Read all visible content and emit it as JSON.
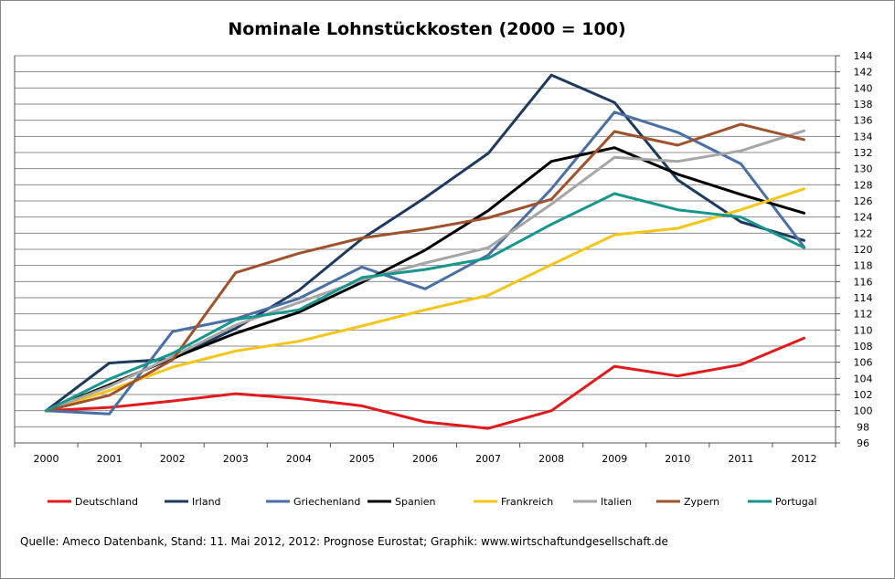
{
  "chart_data": {
    "type": "line",
    "title": "Nominale Lohnstückkosten (2000 = 100)",
    "xlabel": "",
    "ylabel": "",
    "categories": [
      "2000",
      "2001",
      "2002",
      "2003",
      "2004",
      "2005",
      "2006",
      "2007",
      "2008",
      "2009",
      "2010",
      "2011",
      "2012"
    ],
    "ylim": [
      96,
      144
    ],
    "y_ticks": [
      96,
      98,
      100,
      102,
      104,
      106,
      108,
      110,
      112,
      114,
      116,
      118,
      120,
      122,
      124,
      126,
      128,
      130,
      132,
      134,
      136,
      138,
      140,
      142,
      144
    ],
    "y_axis_side": "right",
    "grid": "horizontal",
    "legend_position": "bottom",
    "series": [
      {
        "name": "Deutschland",
        "color": "#e31a1c",
        "values": [
          100,
          100.4,
          101.2,
          102.1,
          101.5,
          100.6,
          98.6,
          97.8,
          100.0,
          105.5,
          104.3,
          105.7,
          109.0
        ]
      },
      {
        "name": "Irland",
        "color": "#1f3a5f",
        "values": [
          100,
          105.9,
          106.4,
          110.2,
          114.9,
          121.3,
          126.4,
          131.9,
          141.6,
          138.2,
          128.6,
          123.4,
          121.1
        ]
      },
      {
        "name": "Griechenland",
        "color": "#4a6fa5",
        "values": [
          100,
          99.6,
          109.8,
          111.4,
          113.9,
          117.8,
          115.1,
          119.3,
          127.5,
          137.0,
          134.5,
          130.6,
          120.3
        ]
      },
      {
        "name": "Spanien",
        "color": "#000000",
        "values": [
          100,
          103.2,
          106.5,
          109.6,
          112.2,
          115.9,
          119.9,
          124.8,
          130.9,
          132.6,
          129.3,
          126.8,
          124.5
        ]
      },
      {
        "name": "Frankreich",
        "color": "#f5c518",
        "values": [
          100,
          102.5,
          105.4,
          107.4,
          108.6,
          110.5,
          112.5,
          114.3,
          118.1,
          121.8,
          122.6,
          124.9,
          127.5
        ]
      },
      {
        "name": "Italien",
        "color": "#a6a6a6",
        "values": [
          100,
          103.0,
          106.7,
          110.6,
          113.4,
          116.2,
          118.3,
          120.2,
          125.6,
          131.4,
          130.9,
          132.2,
          134.7
        ]
      },
      {
        "name": "Zypern",
        "color": "#a0522d",
        "values": [
          100,
          101.9,
          106.3,
          117.1,
          119.5,
          121.4,
          122.5,
          123.9,
          126.2,
          134.6,
          132.9,
          135.5,
          133.6
        ]
      },
      {
        "name": "Portugal",
        "color": "#16968c",
        "values": [
          100,
          103.9,
          107.1,
          111.3,
          112.5,
          116.5,
          117.5,
          118.9,
          123.1,
          126.9,
          124.9,
          124.0,
          120.2
        ]
      }
    ]
  },
  "source_note": "Quelle: Ameco Datenbank, Stand: 11. Mai 2012,  2012:  Prognose Eurostat; Graphik: www.wirtschaftundgesellschaft.de"
}
